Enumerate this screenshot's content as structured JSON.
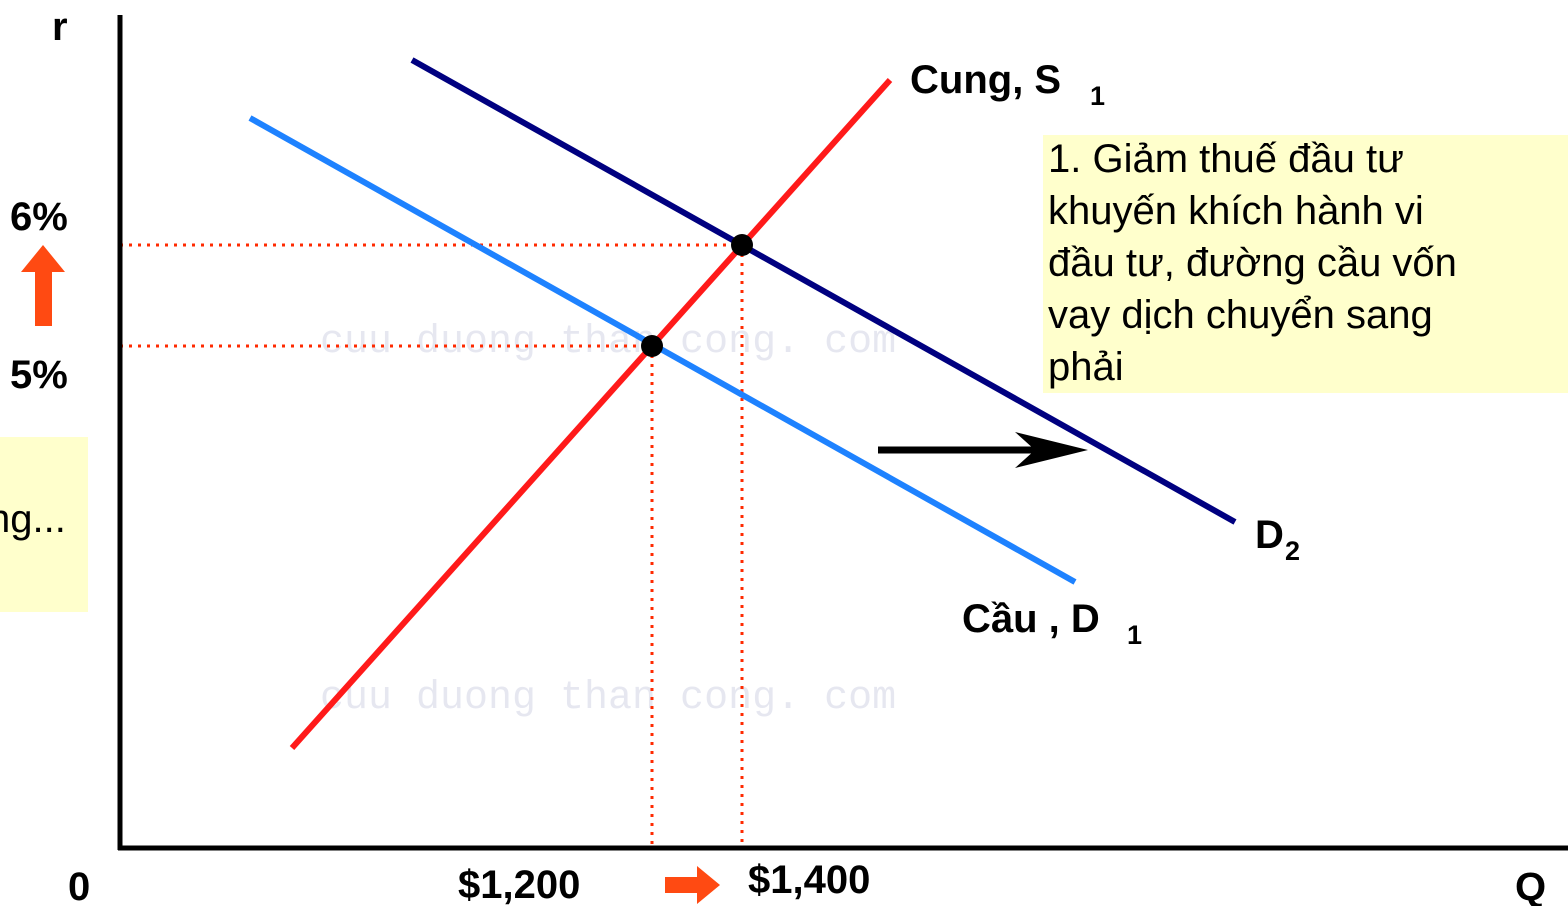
{
  "axes": {
    "y_label": "r",
    "x_label": "Q",
    "origin": "0"
  },
  "rates": {
    "high": "6%",
    "low": "5%"
  },
  "quantities": {
    "low": "$1,200",
    "high": "$1,400"
  },
  "curves": {
    "supply": {
      "text": "Cung, S",
      "sub": "1"
    },
    "demand_new": {
      "text": "D",
      "sub": "2"
    },
    "demand_old": {
      "text": "Cầu , D",
      "sub": "1"
    }
  },
  "note": {
    "lines": [
      "1. Giảm thuế đầu tư",
      "khuyến khích hành vi",
      "đầu tư, đường cầu vốn",
      "vay dịch chuyển sang",
      "phải"
    ]
  },
  "side_note": "ng...",
  "watermarks": [
    "cuu duong than cong. com",
    "cuu duong than cong. com"
  ]
}
